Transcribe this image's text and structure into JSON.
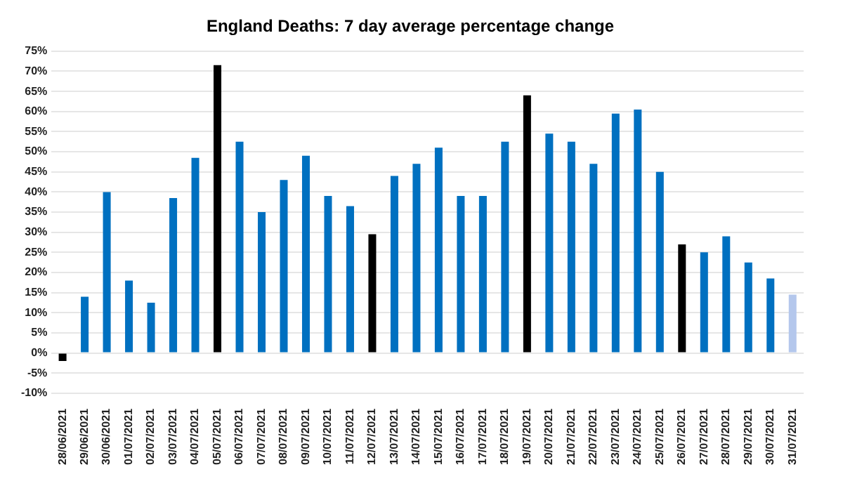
{
  "chart_data": {
    "type": "bar",
    "title": "England Deaths: 7 day average percentage change",
    "categories": [
      "28/06/2021",
      "29/06/2021",
      "30/06/2021",
      "01/07/2021",
      "02/07/2021",
      "03/07/2021",
      "04/07/2021",
      "05/07/2021",
      "06/07/2021",
      "07/07/2021",
      "08/07/2021",
      "09/07/2021",
      "10/07/2021",
      "11/07/2021",
      "12/07/2021",
      "13/07/2021",
      "14/07/2021",
      "15/07/2021",
      "16/07/2021",
      "17/07/2021",
      "18/07/2021",
      "19/07/2021",
      "20/07/2021",
      "21/07/2021",
      "22/07/2021",
      "23/07/2021",
      "24/07/2021",
      "25/07/2021",
      "26/07/2021",
      "27/07/2021",
      "28/07/2021",
      "29/07/2021",
      "30/07/2021",
      "31/07/2021"
    ],
    "values": [
      -2,
      14,
      40,
      18,
      12.5,
      38.5,
      48.5,
      71.5,
      52.5,
      35,
      43,
      49,
      39,
      36.5,
      29.5,
      44,
      47,
      51,
      39,
      39,
      52.5,
      64,
      54.5,
      52.5,
      47,
      59.5,
      60.5,
      45,
      27,
      25,
      29,
      22.5,
      18.5,
      14.5
    ],
    "colors": [
      "#000000",
      "#0070c0",
      "#0070c0",
      "#0070c0",
      "#0070c0",
      "#0070c0",
      "#0070c0",
      "#000000",
      "#0070c0",
      "#0070c0",
      "#0070c0",
      "#0070c0",
      "#0070c0",
      "#0070c0",
      "#000000",
      "#0070c0",
      "#0070c0",
      "#0070c0",
      "#0070c0",
      "#0070c0",
      "#0070c0",
      "#000000",
      "#0070c0",
      "#0070c0",
      "#0070c0",
      "#0070c0",
      "#0070c0",
      "#0070c0",
      "#000000",
      "#0070c0",
      "#0070c0",
      "#0070c0",
      "#0070c0",
      "#b4c7ec"
    ],
    "ylim": [
      -10,
      75
    ],
    "yticks": [
      {
        "value": -10,
        "label": "-10%"
      },
      {
        "value": -5,
        "label": "-5%"
      },
      {
        "value": 0,
        "label": "0%"
      },
      {
        "value": 5,
        "label": "5%"
      },
      {
        "value": 10,
        "label": "10%"
      },
      {
        "value": 15,
        "label": "15%"
      },
      {
        "value": 20,
        "label": "20%"
      },
      {
        "value": 25,
        "label": "25%"
      },
      {
        "value": 30,
        "label": "30%"
      },
      {
        "value": 35,
        "label": "35%"
      },
      {
        "value": 40,
        "label": "40%"
      },
      {
        "value": 45,
        "label": "45%"
      },
      {
        "value": 50,
        "label": "50%"
      },
      {
        "value": 55,
        "label": "55%"
      },
      {
        "value": 60,
        "label": "60%"
      },
      {
        "value": 65,
        "label": "65%"
      },
      {
        "value": 70,
        "label": "70%"
      },
      {
        "value": 75,
        "label": "75%"
      }
    ],
    "grid": "y",
    "legend": false
  }
}
